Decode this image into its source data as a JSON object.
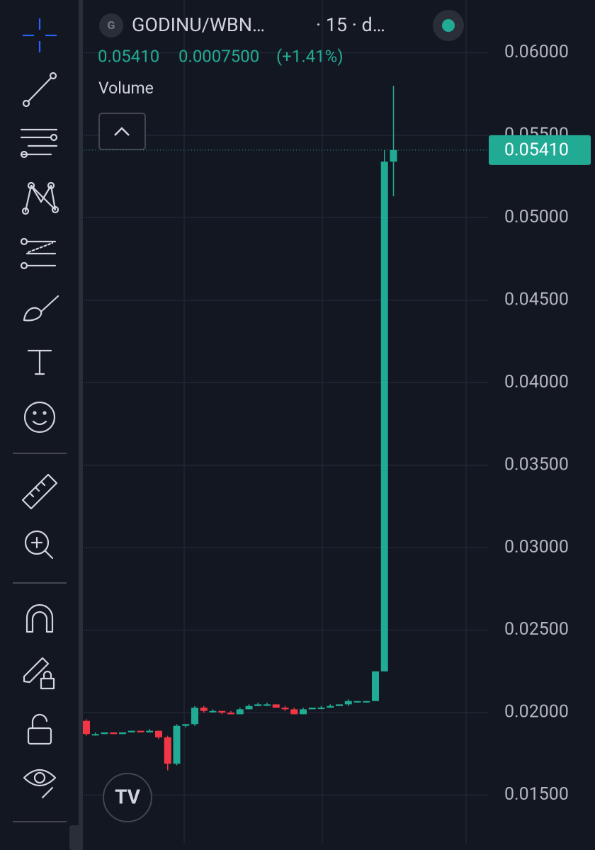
{
  "header": {
    "symbol": "GODINU/WBN…",
    "interval": "· 15 · d…",
    "price": "0.05410",
    "change": "0.0007500",
    "change_pct": "(+1.41%)",
    "indicator": "Volume"
  },
  "chart_data": {
    "type": "candlestick",
    "ylim": [
      0.0121,
      0.0632
    ],
    "yticks": [
      {
        "value": 0.015,
        "label": "0.01500"
      },
      {
        "value": 0.02,
        "label": "0.02000"
      },
      {
        "value": 0.025,
        "label": "0.02500"
      },
      {
        "value": 0.03,
        "label": "0.03000"
      },
      {
        "value": 0.035,
        "label": "0.03500"
      },
      {
        "value": 0.04,
        "label": "0.04000"
      },
      {
        "value": 0.045,
        "label": "0.04500"
      },
      {
        "value": 0.05,
        "label": "0.05000"
      },
      {
        "value": 0.055,
        "label": "0.05500"
      },
      {
        "value": 0.06,
        "label": "0.06000"
      }
    ],
    "open": [
      0.0195,
      0.0187,
      0.0187,
      0.0188,
      0.0187,
      0.0188,
      0.0189,
      0.0188,
      0.0189,
      0.0185,
      0.0169,
      0.0192,
      0.0193,
      0.0203,
      0.0201,
      0.0201,
      0.02,
      0.0199,
      0.0202,
      0.0204,
      0.0205,
      0.0205,
      0.0203,
      0.0202,
      0.0199,
      0.0202,
      0.0203,
      0.0203,
      0.0204,
      0.0205,
      0.0207,
      0.0207,
      0.0207,
      0.0225,
      0.0534
    ],
    "high": [
      0.0196,
      0.0188,
      0.0188,
      0.0188,
      0.0188,
      0.0189,
      0.0189,
      0.019,
      0.0189,
      0.0186,
      0.0193,
      0.0193,
      0.0204,
      0.0204,
      0.0202,
      0.0201,
      0.0201,
      0.0203,
      0.0205,
      0.0206,
      0.0206,
      0.0205,
      0.0204,
      0.0203,
      0.0203,
      0.0203,
      0.0204,
      0.0205,
      0.0205,
      0.0208,
      0.0207,
      0.0207,
      0.0225,
      0.0541,
      0.058
    ],
    "low": [
      0.0186,
      0.0186,
      0.0187,
      0.0187,
      0.0187,
      0.0188,
      0.0188,
      0.0188,
      0.0184,
      0.0165,
      0.0168,
      0.0191,
      0.0192,
      0.02,
      0.02,
      0.0199,
      0.0199,
      0.0199,
      0.0202,
      0.0204,
      0.0204,
      0.0203,
      0.0201,
      0.0199,
      0.0199,
      0.0202,
      0.0202,
      0.0203,
      0.0204,
      0.0204,
      0.0206,
      0.0206,
      0.0207,
      0.0225,
      0.0513
    ],
    "close": [
      0.0187,
      0.0187,
      0.0188,
      0.0187,
      0.0188,
      0.0189,
      0.0188,
      0.0189,
      0.0185,
      0.0169,
      0.0192,
      0.0193,
      0.0203,
      0.0201,
      0.0201,
      0.02,
      0.0199,
      0.0202,
      0.0204,
      0.0205,
      0.0205,
      0.0203,
      0.0202,
      0.0199,
      0.0202,
      0.0203,
      0.0203,
      0.0204,
      0.0205,
      0.0207,
      0.0207,
      0.0207,
      0.0225,
      0.0534,
      0.0541
    ],
    "up_color": "#22ab94",
    "down_color": "#f23645",
    "last_price": {
      "value": 0.0541,
      "label": "0.05410"
    },
    "grid": true
  }
}
